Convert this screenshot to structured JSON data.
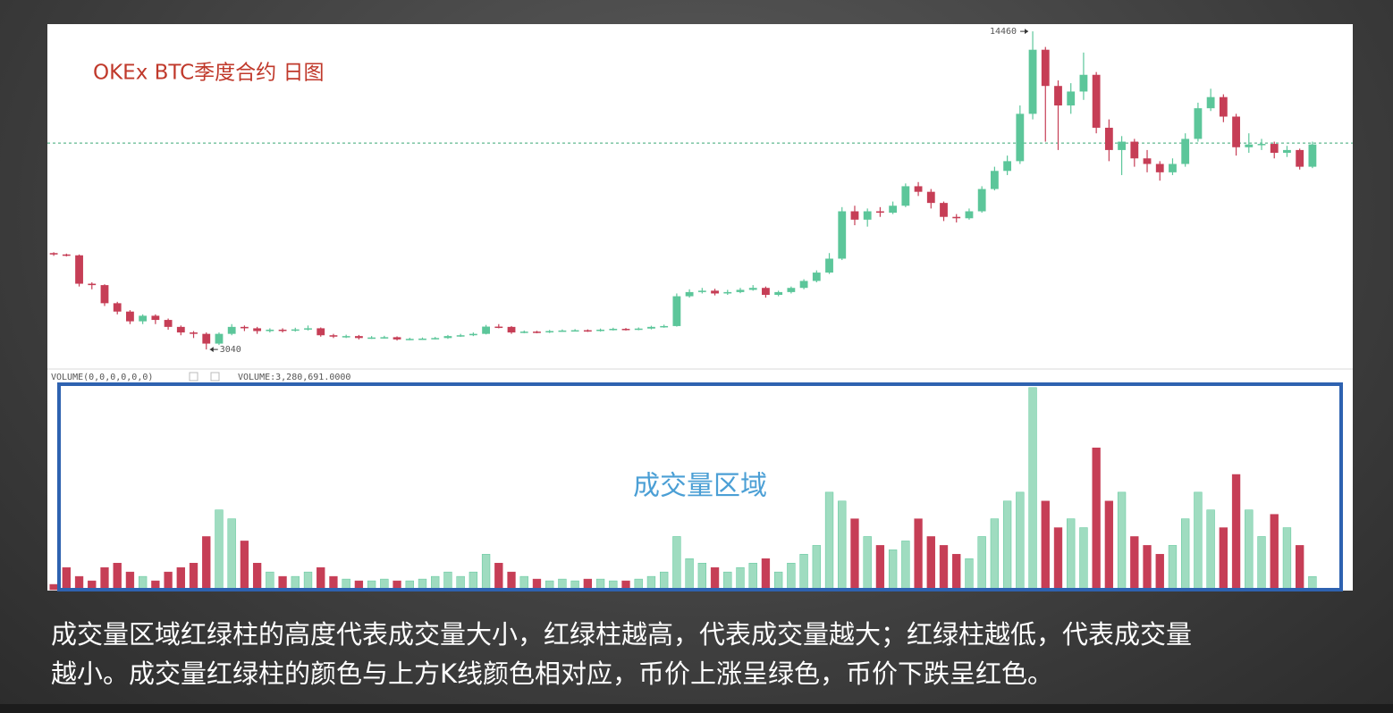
{
  "chart_data": {
    "type": "candlestick",
    "title": "OKEx  BTC季度合约  日图",
    "volume_indicator": "VOLUME(0,0,0,0,0,0)",
    "volume_label": "VOLUME:3,280,691.0000",
    "annotation": "成交量区域",
    "caption": [
      "成交量区域红绿柱的高度代表成交量大小，红绿柱越高，代表成交量越大；红绿柱越低，代表成交量",
      "越小。成交量红绿柱的颜色与上方K线颜色相对应，币价上涨呈绿色，币价下跌呈红色。"
    ],
    "up_color": "#5cc69a",
    "down_color": "#c63e56",
    "ylim": [
      2370,
      14720
    ],
    "volume_ylim": [
      0,
      51000000
    ],
    "reference_line": 10450,
    "high_label_index": 77,
    "low_label_index": 12,
    "open": [
      6500,
      6450,
      6420,
      5400,
      5350,
      4700,
      4400,
      4050,
      4250,
      4100,
      3850,
      3650,
      3600,
      3250,
      3600,
      3850,
      3800,
      3700,
      3750,
      3720,
      3760,
      3800,
      3550,
      3500,
      3520,
      3450,
      3470,
      3480,
      3400,
      3420,
      3430,
      3450,
      3520,
      3550,
      3600,
      3860,
      3850,
      3650,
      3680,
      3660,
      3700,
      3720,
      3730,
      3710,
      3750,
      3780,
      3760,
      3790,
      3850,
      3880,
      4950,
      5100,
      5150,
      5050,
      5100,
      5180,
      5250,
      5000,
      5100,
      5250,
      5500,
      5800,
      6300,
      8000,
      7700,
      8000,
      7950,
      8200,
      8900,
      8700,
      8300,
      7800,
      7750,
      8000,
      8800,
      9450,
      9800,
      11500,
      13800,
      12500,
      11800,
      12300,
      12900,
      11000,
      10200,
      10500,
      9900,
      9700,
      9400,
      9700,
      10600,
      11700,
      12100,
      11400,
      10300,
      10400,
      10420,
      10100,
      10200,
      9600
    ],
    "high": [
      6530,
      6480,
      6450,
      5450,
      5380,
      4750,
      4450,
      4300,
      4300,
      4150,
      3900,
      3700,
      3650,
      3650,
      3950,
      3900,
      3850,
      3800,
      3800,
      3820,
      3900,
      3830,
      3600,
      3570,
      3560,
      3520,
      3530,
      3510,
      3460,
      3470,
      3490,
      3560,
      3600,
      3650,
      3920,
      3950,
      3880,
      3720,
      3710,
      3740,
      3760,
      3770,
      3760,
      3790,
      3820,
      3810,
      3830,
      3890,
      3930,
      5050,
      5200,
      5250,
      5220,
      5180,
      5250,
      5350,
      5300,
      5150,
      5300,
      5560,
      5880,
      6500,
      8150,
      8200,
      8100,
      8150,
      8350,
      9000,
      9050,
      8800,
      8350,
      7900,
      8100,
      8900,
      9600,
      10000,
      11800,
      14460,
      13900,
      12700,
      12600,
      13700,
      13000,
      11300,
      10700,
      10600,
      10200,
      9800,
      9900,
      10800,
      11900,
      12400,
      12200,
      11500,
      10800,
      10600,
      10500,
      10350,
      10250,
      10500
    ],
    "low": [
      6400,
      6380,
      5300,
      5200,
      4600,
      4300,
      3950,
      3950,
      3950,
      3750,
      3550,
      3450,
      3040,
      3200,
      3550,
      3700,
      3600,
      3650,
      3650,
      3680,
      3720,
      3500,
      3450,
      3450,
      3400,
      3420,
      3430,
      3360,
      3370,
      3380,
      3400,
      3420,
      3490,
      3520,
      3580,
      3800,
      3600,
      3620,
      3620,
      3630,
      3670,
      3690,
      3670,
      3680,
      3720,
      3720,
      3730,
      3760,
      3820,
      3860,
      4900,
      5050,
      4980,
      5000,
      5060,
      5150,
      4900,
      4950,
      5050,
      5200,
      5450,
      5750,
      6250,
      7500,
      7450,
      7800,
      7900,
      8150,
      8550,
      8100,
      7650,
      7600,
      7700,
      7950,
      8750,
      9300,
      9700,
      11300,
      10500,
      10200,
      11500,
      12000,
      10800,
      9800,
      9300,
      9600,
      9400,
      9100,
      9300,
      9600,
      10500,
      11600,
      11200,
      10000,
      10100,
      10200,
      9900,
      9950,
      9500,
      9550
    ],
    "close": [
      6450,
      6420,
      5400,
      5350,
      4700,
      4400,
      4050,
      4250,
      4100,
      3850,
      3650,
      3600,
      3250,
      3600,
      3850,
      3800,
      3700,
      3750,
      3720,
      3760,
      3800,
      3550,
      3500,
      3520,
      3450,
      3470,
      3480,
      3400,
      3420,
      3430,
      3450,
      3520,
      3550,
      3600,
      3860,
      3850,
      3650,
      3680,
      3660,
      3700,
      3720,
      3730,
      3710,
      3750,
      3780,
      3760,
      3790,
      3850,
      3880,
      4950,
      5100,
      5150,
      5050,
      5100,
      5180,
      5250,
      5000,
      5100,
      5250,
      5500,
      5800,
      6300,
      8000,
      7700,
      8000,
      7950,
      8200,
      8900,
      8700,
      8300,
      7800,
      7750,
      8000,
      8800,
      9450,
      9800,
      11500,
      13800,
      12500,
      11800,
      12300,
      12900,
      11000,
      10200,
      10500,
      9900,
      9700,
      9400,
      9700,
      10600,
      11700,
      12100,
      11400,
      10300,
      10400,
      10420,
      10100,
      10200,
      9600,
      10400
    ],
    "volume": [
      1320000,
      5500000,
      3300000,
      2200000,
      5500000,
      6600000,
      4400000,
      3300000,
      2200000,
      4400000,
      5500000,
      6600000,
      13200000,
      19800000,
      17600000,
      12100000,
      6600000,
      4400000,
      3300000,
      3300000,
      4400000,
      5500000,
      3300000,
      2640000,
      2200000,
      2200000,
      2640000,
      2200000,
      2200000,
      2640000,
      3300000,
      4400000,
      3300000,
      4400000,
      8800000,
      6600000,
      4400000,
      3300000,
      2640000,
      2200000,
      2640000,
      2200000,
      2640000,
      2640000,
      2200000,
      2200000,
      2640000,
      3300000,
      4400000,
      13200000,
      7700000,
      6600000,
      5500000,
      4400000,
      5500000,
      6600000,
      7700000,
      4400000,
      6600000,
      8800000,
      11000000,
      24200000,
      22000000,
      17600000,
      13200000,
      11000000,
      9900000,
      12100000,
      17600000,
      13200000,
      11000000,
      8800000,
      7700000,
      13200000,
      17600000,
      22000000,
      24200000,
      50160000,
      22000000,
      15400000,
      17600000,
      15400000,
      35200000,
      22000000,
      24200000,
      13200000,
      11000000,
      8800000,
      11000000,
      17600000,
      24200000,
      19800000,
      15400000,
      28600000,
      19800000,
      13200000,
      18700000,
      15400000,
      11000000,
      3280691
    ]
  }
}
